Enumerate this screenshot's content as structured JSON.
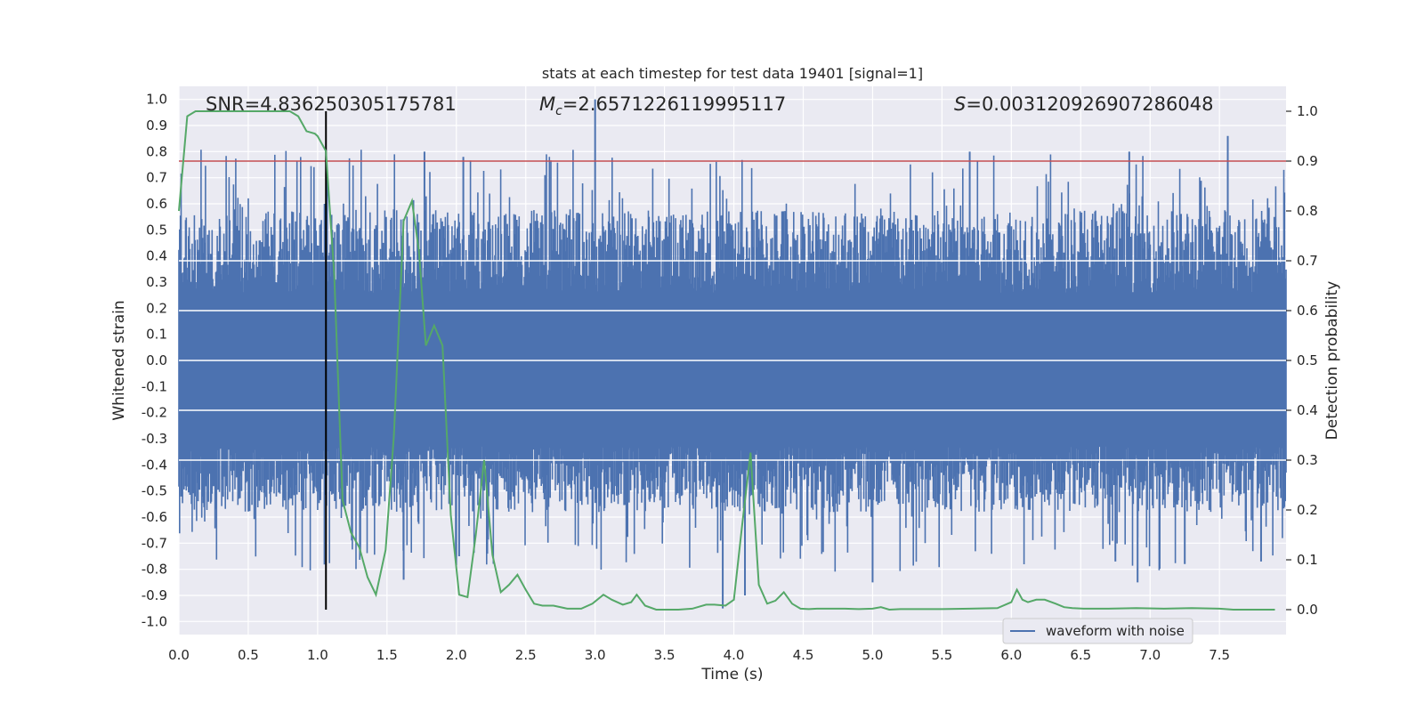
{
  "chart_data": {
    "type": "line",
    "title": "stats at each timestep for test data 19401 [signal=1]",
    "xlabel": "Time (s)",
    "ylabel": "Whitened strain",
    "ylabel_right": "Detection probability",
    "xlim": [
      0.0,
      7.98
    ],
    "ylim": [
      -1.05,
      1.05
    ],
    "ylim_right": [
      -0.05,
      1.05
    ],
    "x_ticks": [
      0.0,
      0.5,
      1.0,
      1.5,
      2.0,
      2.5,
      3.0,
      3.5,
      4.0,
      4.5,
      5.0,
      5.5,
      6.0,
      6.5,
      7.0,
      7.5
    ],
    "x_tick_labels": [
      "0.0",
      "0.5",
      "1.0",
      "1.5",
      "2.0",
      "2.5",
      "3.0",
      "3.5",
      "4.0",
      "4.5",
      "5.0",
      "5.5",
      "6.0",
      "6.5",
      "7.0",
      "7.5"
    ],
    "y_ticks": [
      1.0,
      0.9,
      0.8,
      0.7,
      0.6,
      0.5,
      0.4,
      0.3,
      0.2,
      0.1,
      0.0,
      -0.1,
      -0.2,
      -0.3,
      -0.4,
      -0.5,
      -0.6,
      -0.7,
      -0.8,
      -0.9,
      -1.0
    ],
    "y_tick_labels": [
      "1.0",
      "0.9",
      "0.8",
      "0.7",
      "0.6",
      "0.5",
      "0.4",
      "0.3",
      "0.2",
      "0.1",
      "0.0",
      "-0.1",
      "-0.2",
      "-0.3",
      "-0.4",
      "-0.5",
      "-0.6",
      "-0.7",
      "-0.8",
      "-0.9",
      "-1.0"
    ],
    "y_right_ticks": [
      1.0,
      0.9,
      0.8,
      0.7,
      0.6,
      0.5,
      0.4,
      0.3,
      0.2,
      0.1,
      0.0
    ],
    "y_right_tick_labels": [
      "1.0",
      "0.9",
      "0.8",
      "0.7",
      "0.6",
      "0.5",
      "0.4",
      "0.3",
      "0.2",
      "0.1",
      "0.0"
    ],
    "grid": true,
    "background": "#eaeaf2",
    "annotations": {
      "snr": "SNR=4.836250305175781",
      "mc_symbol": "M",
      "mc_sub": "c",
      "mc_value": "=2.6571226119995117",
      "s_symbol": "S",
      "s_value": "=0.003120926907286048"
    },
    "threshold": {
      "axis": "right",
      "value": 0.9,
      "color": "#c44e52"
    },
    "event_marker": {
      "x": 1.06,
      "from_right": 0.0,
      "to_right": 1.0,
      "color": "#000000"
    },
    "legend": {
      "position": "lower-right",
      "entries": [
        {
          "label": "waveform with noise",
          "color": "#4c72b0"
        }
      ]
    },
    "series": [
      {
        "name": "waveform with noise",
        "axis": "left",
        "color": "#4c72b0",
        "style": "noise-envelope",
        "peaks": [
          {
            "x": 1.05,
            "y": 0.6
          },
          {
            "x": 1.77,
            "y": 0.8
          },
          {
            "x": 2.05,
            "y": 0.78
          },
          {
            "x": 3.0,
            "y": 1.0
          },
          {
            "x": 5.7,
            "y": 0.8
          },
          {
            "x": 6.85,
            "y": 0.8
          },
          {
            "x": 7.56,
            "y": 0.86
          },
          {
            "x": 3.92,
            "y": -0.95
          },
          {
            "x": 4.08,
            "y": -0.9
          },
          {
            "x": 6.91,
            "y": -0.85
          },
          {
            "x": 5.0,
            "y": -0.85
          },
          {
            "x": 1.62,
            "y": -0.84
          },
          {
            "x": 2.02,
            "y": -0.75
          },
          {
            "x": 6.75,
            "y": -0.77
          },
          {
            "x": 7.25,
            "y": -0.78
          },
          {
            "x": 7.8,
            "y": -0.77
          }
        ]
      },
      {
        "axis": "right",
        "color": "#55a868",
        "x": [
          0.0,
          0.06,
          0.12,
          0.2,
          0.3,
          0.4,
          0.5,
          0.6,
          0.7,
          0.8,
          0.86,
          0.92,
          0.98,
          1.0,
          1.06,
          1.12,
          1.18,
          1.24,
          1.3,
          1.36,
          1.42,
          1.49,
          1.55,
          1.62,
          1.68,
          1.73,
          1.78,
          1.84,
          1.9,
          1.96,
          2.02,
          2.08,
          2.14,
          2.2,
          2.26,
          2.32,
          2.38,
          2.44,
          2.5,
          2.56,
          2.62,
          2.7,
          2.8,
          2.9,
          2.98,
          3.06,
          3.12,
          3.2,
          3.26,
          3.3,
          3.36,
          3.44,
          3.52,
          3.6,
          3.7,
          3.8,
          3.86,
          3.94,
          4.0,
          4.06,
          4.12,
          4.18,
          4.24,
          4.3,
          4.36,
          4.42,
          4.48,
          4.54,
          4.6,
          4.7,
          4.8,
          4.9,
          5.0,
          5.06,
          5.12,
          5.2,
          5.3,
          5.5,
          5.7,
          5.9,
          6.0,
          6.04,
          6.08,
          6.12,
          6.18,
          6.24,
          6.32,
          6.38,
          6.44,
          6.52,
          6.7,
          6.9,
          7.1,
          7.3,
          7.5,
          7.6,
          7.9
        ],
        "values": [
          0.8,
          0.99,
          1.0,
          1.0,
          1.0,
          1.0,
          1.0,
          1.0,
          1.0,
          1.0,
          0.99,
          0.96,
          0.955,
          0.95,
          0.92,
          0.67,
          0.22,
          0.155,
          0.125,
          0.065,
          0.03,
          0.12,
          0.35,
          0.78,
          0.82,
          0.72,
          0.53,
          0.57,
          0.53,
          0.19,
          0.03,
          0.025,
          0.15,
          0.3,
          0.11,
          0.035,
          0.05,
          0.07,
          0.04,
          0.012,
          0.008,
          0.008,
          0.002,
          0.002,
          0.012,
          0.03,
          0.02,
          0.01,
          0.015,
          0.03,
          0.008,
          0.0,
          0.0,
          0.0,
          0.002,
          0.01,
          0.01,
          0.008,
          0.02,
          0.17,
          0.315,
          0.05,
          0.012,
          0.018,
          0.035,
          0.012,
          0.002,
          0.001,
          0.002,
          0.002,
          0.002,
          0.001,
          0.002,
          0.005,
          0.0,
          0.001,
          0.001,
          0.001,
          0.002,
          0.003,
          0.015,
          0.04,
          0.02,
          0.015,
          0.02,
          0.02,
          0.012,
          0.005,
          0.003,
          0.002,
          0.002,
          0.003,
          0.002,
          0.003,
          0.002,
          0.0,
          0.0
        ]
      }
    ]
  }
}
